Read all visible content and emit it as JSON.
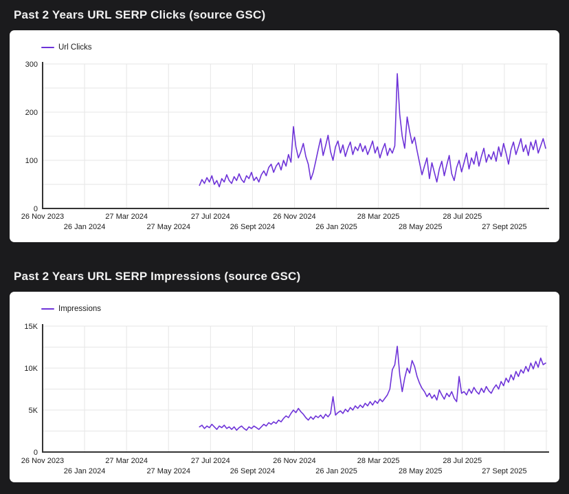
{
  "chart_data": [
    {
      "type": "line",
      "title": "Past 2 Years URL SERP Clicks (source GSC)",
      "legend_position": "top-left",
      "grid": true,
      "x_axis": {
        "tick_labels": [
          "26 Nov 2023",
          "26 Jan 2024",
          "27 Mar 2024",
          "27 May 2024",
          "27 Jul 2024",
          "26 Sept 2024",
          "26 Nov 2024",
          "26 Jan 2025",
          "28 Mar 2025",
          "28 May 2025",
          "28 Jul 2025",
          "27 Sept 2025"
        ],
        "tick_interval_days": 61,
        "domain_days": [
          0,
          734
        ],
        "stagger": true
      },
      "y_axis": {
        "min": 0,
        "max": 300,
        "grid_step": 50,
        "tick_labels": [
          "300",
          "200",
          "100",
          "0"
        ]
      },
      "series": [
        {
          "name": "Url Clicks",
          "color": "#6D32D8",
          "start_day": 228,
          "end_day": 731,
          "values": [
            48,
            60,
            52,
            64,
            55,
            68,
            50,
            58,
            45,
            62,
            55,
            70,
            58,
            52,
            66,
            58,
            72,
            60,
            54,
            68,
            62,
            75,
            58,
            65,
            55,
            70,
            78,
            68,
            85,
            92,
            75,
            88,
            95,
            80,
            100,
            88,
            112,
            96,
            170,
            128,
            105,
            118,
            135,
            108,
            92,
            60,
            75,
            98,
            122,
            145,
            110,
            130,
            152,
            118,
            100,
            128,
            140,
            115,
            132,
            108,
            125,
            138,
            112,
            128,
            120,
            135,
            118,
            130,
            112,
            125,
            140,
            115,
            128,
            105,
            122,
            135,
            110,
            125,
            115,
            130,
            280,
            195,
            150,
            125,
            190,
            160,
            135,
            148,
            120,
            95,
            70,
            88,
            105,
            62,
            95,
            75,
            55,
            82,
            98,
            68,
            90,
            110,
            72,
            58,
            85,
            100,
            76,
            95,
            115,
            82,
            105,
            92,
            118,
            88,
            108,
            125,
            96,
            112,
            102,
            118,
            98,
            128,
            108,
            135,
            115,
            92,
            122,
            138,
            112,
            128,
            145,
            118,
            132,
            110,
            138,
            122,
            142,
            115,
            130,
            145,
            125
          ]
        }
      ]
    },
    {
      "type": "line",
      "title": "Past 2 Years URL SERP Impressions (source GSC)",
      "legend_position": "top-left",
      "grid": true,
      "x_axis": {
        "tick_labels": [
          "26 Nov 2023",
          "26 Jan 2024",
          "27 Mar 2024",
          "27 May 2024",
          "27 Jul 2024",
          "26 Sept 2024",
          "26 Nov 2024",
          "26 Jan 2025",
          "28 Mar 2025",
          "28 May 2025",
          "28 Jul 2025",
          "27 Sept 2025"
        ],
        "tick_interval_days": 61,
        "domain_days": [
          0,
          734
        ],
        "stagger": true
      },
      "y_axis": {
        "min": 0,
        "max": 15000,
        "grid_step": 2500,
        "tick_labels": [
          "15K",
          "10K",
          "5K",
          "0"
        ]
      },
      "series": [
        {
          "name": "Impressions",
          "color": "#6D32D8",
          "start_day": 228,
          "end_day": 731,
          "values": [
            3000,
            3200,
            2800,
            3100,
            2900,
            3300,
            3000,
            2700,
            3100,
            2900,
            3200,
            2800,
            3000,
            2700,
            3000,
            2600,
            2900,
            3100,
            2800,
            2600,
            3000,
            2800,
            3100,
            2900,
            2700,
            3000,
            3300,
            3100,
            3500,
            3300,
            3600,
            3400,
            3800,
            3600,
            4000,
            4300,
            4100,
            4600,
            5000,
            4700,
            5200,
            4800,
            4500,
            4100,
            3800,
            4200,
            3900,
            4300,
            4100,
            4400,
            4000,
            4500,
            4200,
            4600,
            6600,
            4400,
            4700,
            4900,
            4600,
            5100,
            4800,
            5300,
            5000,
            5500,
            5200,
            5600,
            5300,
            5800,
            5500,
            6000,
            5600,
            6100,
            5800,
            6300,
            6000,
            6400,
            6800,
            7500,
            9800,
            10400,
            12600,
            9200,
            7200,
            8800,
            10000,
            9400,
            10900,
            10200,
            9000,
            8200,
            7600,
            7200,
            6600,
            7000,
            6400,
            6800,
            6200,
            7400,
            6800,
            6300,
            7000,
            6600,
            7200,
            6400,
            6000,
            9000,
            7000,
            7200,
            6800,
            7500,
            7000,
            7700,
            7200,
            6900,
            7600,
            7100,
            7800,
            7300,
            7000,
            7600,
            8000,
            7500,
            8400,
            7900,
            8800,
            8300,
            9200,
            8600,
            9600,
            9000,
            9800,
            9400,
            10200,
            9600,
            10600,
            9900,
            10800,
            10100,
            11200,
            10400,
            10600
          ]
        }
      ]
    }
  ],
  "colors": {
    "page_background": "#1B1B1D",
    "card_background": "#FFFFFF",
    "title_text": "#F2F2F2",
    "line": "#6D32D8",
    "gridline": "#E6E6E6",
    "axis": "#333333",
    "tick_text": "#1A1A1A"
  }
}
